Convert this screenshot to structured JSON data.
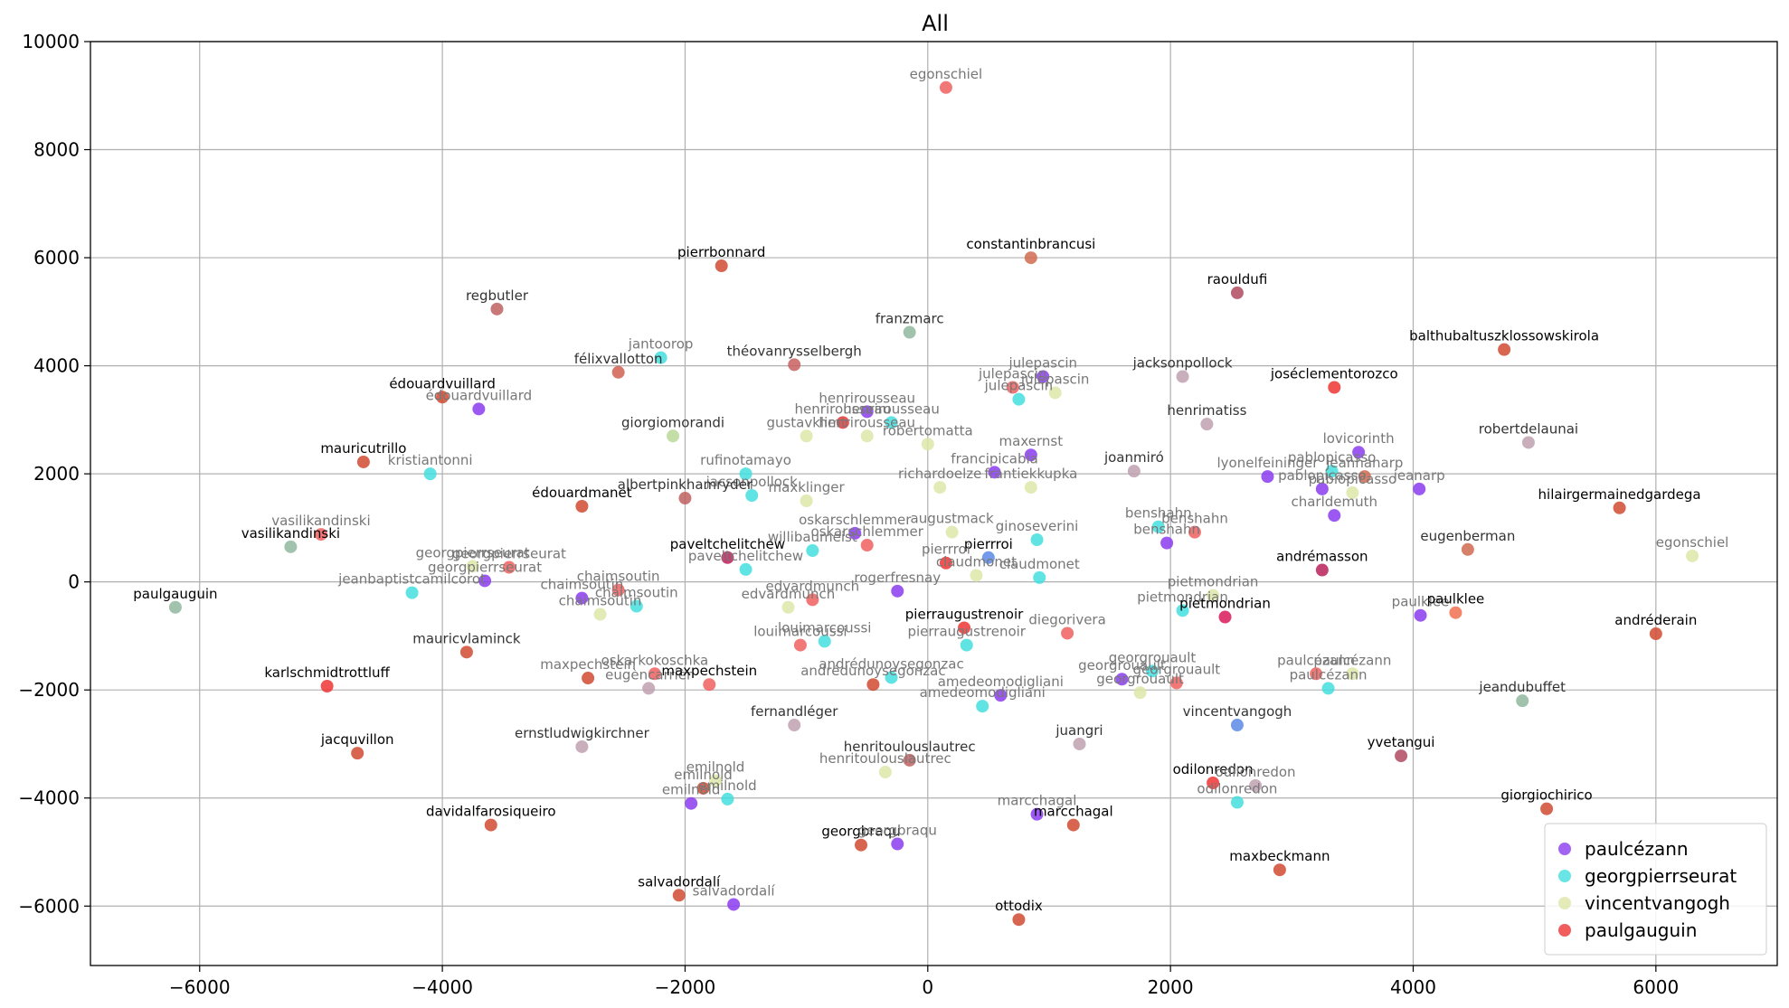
{
  "chart_data": {
    "type": "scatter",
    "title": "All",
    "xlim": [
      -6900,
      7000
    ],
    "ylim": [
      -7100,
      10000
    ],
    "xticks": [
      -6000,
      -4000,
      -2000,
      0,
      2000,
      4000,
      6000
    ],
    "yticks": [
      -6000,
      -4000,
      -2000,
      0,
      2000,
      4000,
      6000,
      8000,
      10000
    ],
    "xtick_labels": [
      "−6000",
      "−4000",
      "−2000",
      "0",
      "2000",
      "4000",
      "6000"
    ],
    "ytick_labels": [
      "−6000",
      "−4000",
      "−2000",
      "0",
      "2000",
      "4000",
      "6000",
      "8000",
      "10000"
    ],
    "grid": true,
    "legend_position": "lower-right",
    "series": [
      {
        "name": "paulcézann",
        "color": "#8b3cf0"
      },
      {
        "name": "georgpierrseurat",
        "color": "#44dede"
      },
      {
        "name": "vincentvangogh",
        "color": "#dde6a8"
      },
      {
        "name": "paulgauguin",
        "color": "#ee3434"
      }
    ],
    "points": [
      {
        "x": 150,
        "y": 9150,
        "c": "#f06060",
        "label": "egonschiel",
        "lc": "#777777"
      },
      {
        "x": -1700,
        "y": 5850,
        "c": "#d04a30",
        "label": "pierrbonnard",
        "lc": "#000000"
      },
      {
        "x": 850,
        "y": 6000,
        "c": "#d06a50",
        "label": "constantinbrancusi",
        "lc": "#000000"
      },
      {
        "x": -3550,
        "y": 5050,
        "c": "#c06060",
        "label": "regbutler",
        "lc": "#333333"
      },
      {
        "x": -2200,
        "y": 4150,
        "c": "#44dede",
        "label": "jantoorop",
        "lc": "#777777"
      },
      {
        "x": -1100,
        "y": 4020,
        "c": "#c86060",
        "label": "théovanrysselbergh",
        "lc": "#333333"
      },
      {
        "x": -150,
        "y": 4620,
        "c": "#90b8a0",
        "label": "franzmarc",
        "lc": "#333333"
      },
      {
        "x": -2550,
        "y": 3880,
        "c": "#d06050",
        "label": "félixvallotton",
        "lc": "#333333"
      },
      {
        "x": 2550,
        "y": 5350,
        "c": "#b04a60",
        "label": "raouldufi",
        "lc": "#000000"
      },
      {
        "x": 4750,
        "y": 4300,
        "c": "#d04a30",
        "label": "balthubaltuszklossowskirola",
        "lc": "#000000"
      },
      {
        "x": 950,
        "y": 3800,
        "c": "#8b3cf0",
        "label": "julepascin",
        "lc": "#777777"
      },
      {
        "x": 700,
        "y": 3600,
        "c": "#f06060",
        "label": "julepascin",
        "lc": "#777777"
      },
      {
        "x": 750,
        "y": 3380,
        "c": "#44dede",
        "label": "julepascin",
        "lc": "#777777"
      },
      {
        "x": 1050,
        "y": 3500,
        "c": "#dde6a8",
        "label": "julepascin",
        "lc": "#777777"
      },
      {
        "x": 2100,
        "y": 3800,
        "c": "#c0a0b0",
        "label": "jacksonpollock",
        "lc": "#333333"
      },
      {
        "x": 3350,
        "y": 3600,
        "c": "#ee3434",
        "label": "joséclementorozco",
        "lc": "#000000"
      },
      {
        "x": -4000,
        "y": 3420,
        "c": "#d04a30",
        "label": "édouardvuillard",
        "lc": "#000000"
      },
      {
        "x": -3700,
        "y": 3200,
        "c": "#8b3cf0",
        "label": "édouardvuillard",
        "lc": "#777777"
      },
      {
        "x": -700,
        "y": 2950,
        "c": "#ee3434",
        "label": "henrirousseau",
        "lc": "#777777"
      },
      {
        "x": -500,
        "y": 3150,
        "c": "#8b3cf0",
        "label": "henrirousseau",
        "lc": "#777777"
      },
      {
        "x": -300,
        "y": 2950,
        "c": "#44dede",
        "label": "henrirousseau",
        "lc": "#777777"
      },
      {
        "x": -1000,
        "y": 2700,
        "c": "#dde6a8",
        "label": "gustavklimt",
        "lc": "#777777"
      },
      {
        "x": -500,
        "y": 2700,
        "c": "#dde6a8",
        "label": "henrirousseau",
        "lc": "#777777"
      },
      {
        "x": -2100,
        "y": 2700,
        "c": "#b8d898",
        "label": "giorgiomorandi",
        "lc": "#333333"
      },
      {
        "x": 0,
        "y": 2550,
        "c": "#dde6a8",
        "label": "robertomatta",
        "lc": "#777777"
      },
      {
        "x": 2300,
        "y": 2920,
        "c": "#c0a0b0",
        "label": "henrimatiss",
        "lc": "#333333"
      },
      {
        "x": 3550,
        "y": 2400,
        "c": "#8b3cf0",
        "label": "lovicorinth",
        "lc": "#777777"
      },
      {
        "x": 4950,
        "y": 2580,
        "c": "#c0a0b0",
        "label": "robertdelaunai",
        "lc": "#333333"
      },
      {
        "x": -4650,
        "y": 2220,
        "c": "#d04a30",
        "label": "mauricutrillo",
        "lc": "#000000"
      },
      {
        "x": -4100,
        "y": 2000,
        "c": "#44dede",
        "label": "kristiantonni",
        "lc": "#777777"
      },
      {
        "x": -1500,
        "y": 2000,
        "c": "#44dede",
        "label": "rufinotamayo",
        "lc": "#777777"
      },
      {
        "x": -1450,
        "y": 1600,
        "c": "#44dede",
        "label": "jacsonpollock",
        "lc": "#777777"
      },
      {
        "x": -1000,
        "y": 1500,
        "c": "#dde6a8",
        "label": "maxklinger",
        "lc": "#777777"
      },
      {
        "x": -2000,
        "y": 1550,
        "c": "#c06060",
        "label": "albertpinkhamryder",
        "lc": "#333333"
      },
      {
        "x": -2850,
        "y": 1400,
        "c": "#d04a30",
        "label": "édouardmanet",
        "lc": "#000000"
      },
      {
        "x": 850,
        "y": 2350,
        "c": "#8b3cf0",
        "label": "maxernst",
        "lc": "#777777"
      },
      {
        "x": 550,
        "y": 2030,
        "c": "#8b3cf0",
        "label": "francipicabia",
        "lc": "#777777"
      },
      {
        "x": 100,
        "y": 1750,
        "c": "#dde6a8",
        "label": "richardoelze",
        "lc": "#777777"
      },
      {
        "x": 850,
        "y": 1750,
        "c": "#dde6a8",
        "label": "franti̇ekkupka",
        "lc": "#777777"
      },
      {
        "x": 1700,
        "y": 2050,
        "c": "#c0a0b0",
        "label": "joanmiró",
        "lc": "#333333"
      },
      {
        "x": 2800,
        "y": 1950,
        "c": "#8b3cf0",
        "label": "lyonelfeininger",
        "lc": "#777777"
      },
      {
        "x": 3250,
        "y": 1720,
        "c": "#8b3cf0",
        "label": "pablopicasso",
        "lc": "#777777"
      },
      {
        "x": 3330,
        "y": 2050,
        "c": "#44dede",
        "label": "pablopicasso",
        "lc": "#777777"
      },
      {
        "x": 3500,
        "y": 1650,
        "c": "#dde6a8",
        "label": "pablopicasso",
        "lc": "#777777"
      },
      {
        "x": 3600,
        "y": 1950,
        "c": "#d06a50",
        "label": "jeanhanarp",
        "lc": "#777777"
      },
      {
        "x": 4050,
        "y": 1720,
        "c": "#8b3cf0",
        "label": "jeanarp",
        "lc": "#777777"
      },
      {
        "x": 3350,
        "y": 1230,
        "c": "#8b3cf0",
        "label": "charldemuth",
        "lc": "#777777"
      },
      {
        "x": 5700,
        "y": 1370,
        "c": "#d04a30",
        "label": "hilairgermainedgardega",
        "lc": "#000000"
      },
      {
        "x": -5000,
        "y": 880,
        "c": "#f06060",
        "label": "vasilikandinski",
        "lc": "#777777"
      },
      {
        "x": -5250,
        "y": 650,
        "c": "#90b8a0",
        "label": "vasilikandinski",
        "lc": "#000000"
      },
      {
        "x": -3450,
        "y": 270,
        "c": "#f06060",
        "label": "georgpierrseurat",
        "lc": "#777777"
      },
      {
        "x": -3750,
        "y": 290,
        "c": "#dde6a8",
        "label": "georgpierrseurat",
        "lc": "#777777"
      },
      {
        "x": -3650,
        "y": 20,
        "c": "#8b3cf0",
        "label": "georgpierrseurat",
        "lc": "#777777"
      },
      {
        "x": -4250,
        "y": -200,
        "c": "#44dede",
        "label": "jeanbaptistcamilcorot",
        "lc": "#777777"
      },
      {
        "x": -1650,
        "y": 450,
        "c": "#b8205a",
        "label": "paveltchelitchew",
        "lc": "#000000"
      },
      {
        "x": -1500,
        "y": 230,
        "c": "#44dede",
        "label": "paveltchelitchew",
        "lc": "#777777"
      },
      {
        "x": -600,
        "y": 900,
        "c": "#8b3cf0",
        "label": "oskarschlemmer",
        "lc": "#777777"
      },
      {
        "x": -950,
        "y": 580,
        "c": "#44dede",
        "label": "willibaumeist",
        "lc": "#777777"
      },
      {
        "x": -500,
        "y": 680,
        "c": "#f06060",
        "label": "oskarschlemmer",
        "lc": "#777777"
      },
      {
        "x": 200,
        "y": 920,
        "c": "#dde6a8",
        "label": "augustmack",
        "lc": "#777777"
      },
      {
        "x": 900,
        "y": 780,
        "c": "#44dede",
        "label": "ginoseverini",
        "lc": "#777777"
      },
      {
        "x": 500,
        "y": 450,
        "c": "#5a8ae6",
        "label": "pierrroi",
        "lc": "#000000"
      },
      {
        "x": 150,
        "y": 350,
        "c": "#ee3434",
        "label": "pierrroi",
        "lc": "#777777"
      },
      {
        "x": 400,
        "y": 120,
        "c": "#dde6a8",
        "label": "claudmonet",
        "lc": "#777777"
      },
      {
        "x": 920,
        "y": 80,
        "c": "#44dede",
        "label": "claudmonet",
        "lc": "#777777"
      },
      {
        "x": 1900,
        "y": 1020,
        "c": "#44dede",
        "label": "benshahn",
        "lc": "#777777"
      },
      {
        "x": 2200,
        "y": 920,
        "c": "#f06060",
        "label": "benshahn",
        "lc": "#777777"
      },
      {
        "x": 1970,
        "y": 720,
        "c": "#8b3cf0",
        "label": "benshahn",
        "lc": "#777777"
      },
      {
        "x": 3250,
        "y": 220,
        "c": "#b8205a",
        "label": "andrémasson",
        "lc": "#000000"
      },
      {
        "x": 4450,
        "y": 600,
        "c": "#d06a50",
        "label": "eugenberman",
        "lc": "#333333"
      },
      {
        "x": 6300,
        "y": 480,
        "c": "#dde6a8",
        "label": "egonschiel",
        "lc": "#777777"
      },
      {
        "x": -2850,
        "y": -300,
        "c": "#8b3cf0",
        "label": "chaimsoutin",
        "lc": "#777777"
      },
      {
        "x": -2550,
        "y": -150,
        "c": "#f06060",
        "label": "chaimsoutin",
        "lc": "#777777"
      },
      {
        "x": -2700,
        "y": -600,
        "c": "#dde6a8",
        "label": "chaimsoutin",
        "lc": "#777777"
      },
      {
        "x": -2400,
        "y": -450,
        "c": "#44dede",
        "label": "chaimsoutin",
        "lc": "#777777"
      },
      {
        "x": -6200,
        "y": -470,
        "c": "#90b8a0",
        "label": "paulgauguin",
        "lc": "#000000"
      },
      {
        "x": -1150,
        "y": -470,
        "c": "#dde6a8",
        "label": "edvardmunch",
        "lc": "#777777"
      },
      {
        "x": -950,
        "y": -330,
        "c": "#f06060",
        "label": "edvardmunch",
        "lc": "#777777"
      },
      {
        "x": -250,
        "y": -170,
        "c": "#8b3cf0",
        "label": "rogerfresnay",
        "lc": "#777777"
      },
      {
        "x": -1050,
        "y": -1170,
        "c": "#f06060",
        "label": "louimarcoussi",
        "lc": "#777777"
      },
      {
        "x": -850,
        "y": -1100,
        "c": "#44dede",
        "label": "louimarcoussi",
        "lc": "#777777"
      },
      {
        "x": 300,
        "y": -850,
        "c": "#ee3434",
        "label": "pierraugustrenoir",
        "lc": "#000000"
      },
      {
        "x": 320,
        "y": -1170,
        "c": "#44dede",
        "label": "pierraugustrenoir",
        "lc": "#777777"
      },
      {
        "x": 1150,
        "y": -950,
        "c": "#f06060",
        "label": "diegorivera",
        "lc": "#777777"
      },
      {
        "x": 2100,
        "y": -530,
        "c": "#44dede",
        "label": "pietmondrian",
        "lc": "#777777"
      },
      {
        "x": 2450,
        "y": -650,
        "c": "#d81a5a",
        "label": "pietmondrian",
        "lc": "#000000"
      },
      {
        "x": 2350,
        "y": -250,
        "c": "#dde6a8",
        "label": "pietmondrian",
        "lc": "#777777"
      },
      {
        "x": 4060,
        "y": -620,
        "c": "#8b3cf0",
        "label": "paulklee",
        "lc": "#777777"
      },
      {
        "x": 4350,
        "y": -570,
        "c": "#f07050",
        "label": "paulklee",
        "lc": "#000000"
      },
      {
        "x": 6000,
        "y": -960,
        "c": "#d04a30",
        "label": "andréderain",
        "lc": "#000000"
      },
      {
        "x": -3800,
        "y": -1300,
        "c": "#d04a30",
        "label": "mauricvlaminck",
        "lc": "#333333"
      },
      {
        "x": -4950,
        "y": -1930,
        "c": "#ee3434",
        "label": "karlschmidtrottluff",
        "lc": "#000000"
      },
      {
        "x": -2800,
        "y": -1780,
        "c": "#d04a30",
        "label": "maxpechstein",
        "lc": "#777777"
      },
      {
        "x": -2300,
        "y": -1970,
        "c": "#c0a0b0",
        "label": "eugèncarrièr",
        "lc": "#777777"
      },
      {
        "x": -2250,
        "y": -1700,
        "c": "#f06060",
        "label": "oskarkokoschka",
        "lc": "#777777"
      },
      {
        "x": -1800,
        "y": -1900,
        "c": "#f06060",
        "label": "maxpechstein",
        "lc": "#000000"
      },
      {
        "x": -300,
        "y": -1770,
        "c": "#44dede",
        "label": "andrédunoysegonzac",
        "lc": "#777777"
      },
      {
        "x": -450,
        "y": -1900,
        "c": "#d04a30",
        "label": "andrédunoysegonzac",
        "lc": "#777777"
      },
      {
        "x": 600,
        "y": -2100,
        "c": "#8b3cf0",
        "label": "amedeomodigliani",
        "lc": "#777777"
      },
      {
        "x": 450,
        "y": -2300,
        "c": "#44dede",
        "label": "amedeomodigliani",
        "lc": "#777777"
      },
      {
        "x": 1600,
        "y": -1800,
        "c": "#8b3cf0",
        "label": "georgrouault",
        "lc": "#777777"
      },
      {
        "x": 1850,
        "y": -1650,
        "c": "#44dede",
        "label": "georgrouault",
        "lc": "#777777"
      },
      {
        "x": 1750,
        "y": -2050,
        "c": "#dde6a8",
        "label": "georgrouault",
        "lc": "#777777"
      },
      {
        "x": 2050,
        "y": -1870,
        "c": "#f06060",
        "label": "georgrouault",
        "lc": "#777777"
      },
      {
        "x": 3200,
        "y": -1700,
        "c": "#f06060",
        "label": "paulcézann",
        "lc": "#777777"
      },
      {
        "x": 3300,
        "y": -1970,
        "c": "#44dede",
        "label": "paulcézann",
        "lc": "#777777"
      },
      {
        "x": 3500,
        "y": -1700,
        "c": "#dde6a8",
        "label": "paulcézann",
        "lc": "#777777"
      },
      {
        "x": 4900,
        "y": -2200,
        "c": "#90b8a0",
        "label": "jeandubuffet",
        "lc": "#333333"
      },
      {
        "x": -1100,
        "y": -2650,
        "c": "#c0a0b0",
        "label": "fernandléger",
        "lc": "#333333"
      },
      {
        "x": -2850,
        "y": -3050,
        "c": "#c0a0b0",
        "label": "ernstludwigkirchner",
        "lc": "#333333"
      },
      {
        "x": -4700,
        "y": -3170,
        "c": "#d04a30",
        "label": "jacquvillon",
        "lc": "#000000"
      },
      {
        "x": 1250,
        "y": -3000,
        "c": "#c0a0b0",
        "label": "juangri",
        "lc": "#333333"
      },
      {
        "x": 2550,
        "y": -2650,
        "c": "#5a8ae6",
        "label": "vincentvangogh",
        "lc": "#333333"
      },
      {
        "x": 3900,
        "y": -3220,
        "c": "#b04a60",
        "label": "yvetangui",
        "lc": "#000000"
      },
      {
        "x": -150,
        "y": -3300,
        "c": "#c06060",
        "label": "henritoulouslautrec",
        "lc": "#333333"
      },
      {
        "x": -350,
        "y": -3520,
        "c": "#dde6a8",
        "label": "henritoulouslautrec",
        "lc": "#777777"
      },
      {
        "x": -1750,
        "y": -3680,
        "c": "#dde6a8",
        "label": "emilnold",
        "lc": "#777777"
      },
      {
        "x": -1850,
        "y": -3820,
        "c": "#d04a30",
        "label": "emilnold",
        "lc": "#777777"
      },
      {
        "x": -1950,
        "y": -4100,
        "c": "#8b3cf0",
        "label": "emilnold",
        "lc": "#777777"
      },
      {
        "x": -1650,
        "y": -4020,
        "c": "#44dede",
        "label": "emilnold",
        "lc": "#777777"
      },
      {
        "x": 2350,
        "y": -3720,
        "c": "#ee3434",
        "label": "odilonredon",
        "lc": "#000000"
      },
      {
        "x": 2700,
        "y": -3770,
        "c": "#c0a0b0",
        "label": "odilonredon",
        "lc": "#777777"
      },
      {
        "x": 2550,
        "y": -4080,
        "c": "#44dede",
        "label": "odilonredon",
        "lc": "#777777"
      },
      {
        "x": 5100,
        "y": -4200,
        "c": "#d04a30",
        "label": "giorgiochirico",
        "lc": "#000000"
      },
      {
        "x": 900,
        "y": -4300,
        "c": "#8b3cf0",
        "label": "marcchagal",
        "lc": "#777777"
      },
      {
        "x": 1200,
        "y": -4500,
        "c": "#d04a30",
        "label": "marcchagal",
        "lc": "#000000"
      },
      {
        "x": -3600,
        "y": -4500,
        "c": "#d04a30",
        "label": "davidalfarosiqueiro",
        "lc": "#000000"
      },
      {
        "x": -550,
        "y": -4870,
        "c": "#d04a30",
        "label": "georgbraqu",
        "lc": "#000000"
      },
      {
        "x": -250,
        "y": -4850,
        "c": "#8b3cf0",
        "label": "georgbraqu",
        "lc": "#777777"
      },
      {
        "x": 2900,
        "y": -5330,
        "c": "#d04a30",
        "label": "maxbeckmann",
        "lc": "#000000"
      },
      {
        "x": -2050,
        "y": -5800,
        "c": "#d04a30",
        "label": "salvadordalí",
        "lc": "#000000"
      },
      {
        "x": -1600,
        "y": -5970,
        "c": "#8b3cf0",
        "label": "salvadordalí",
        "lc": "#777777"
      },
      {
        "x": 750,
        "y": -6250,
        "c": "#d04a30",
        "label": "ottodix",
        "lc": "#000000"
      }
    ]
  }
}
